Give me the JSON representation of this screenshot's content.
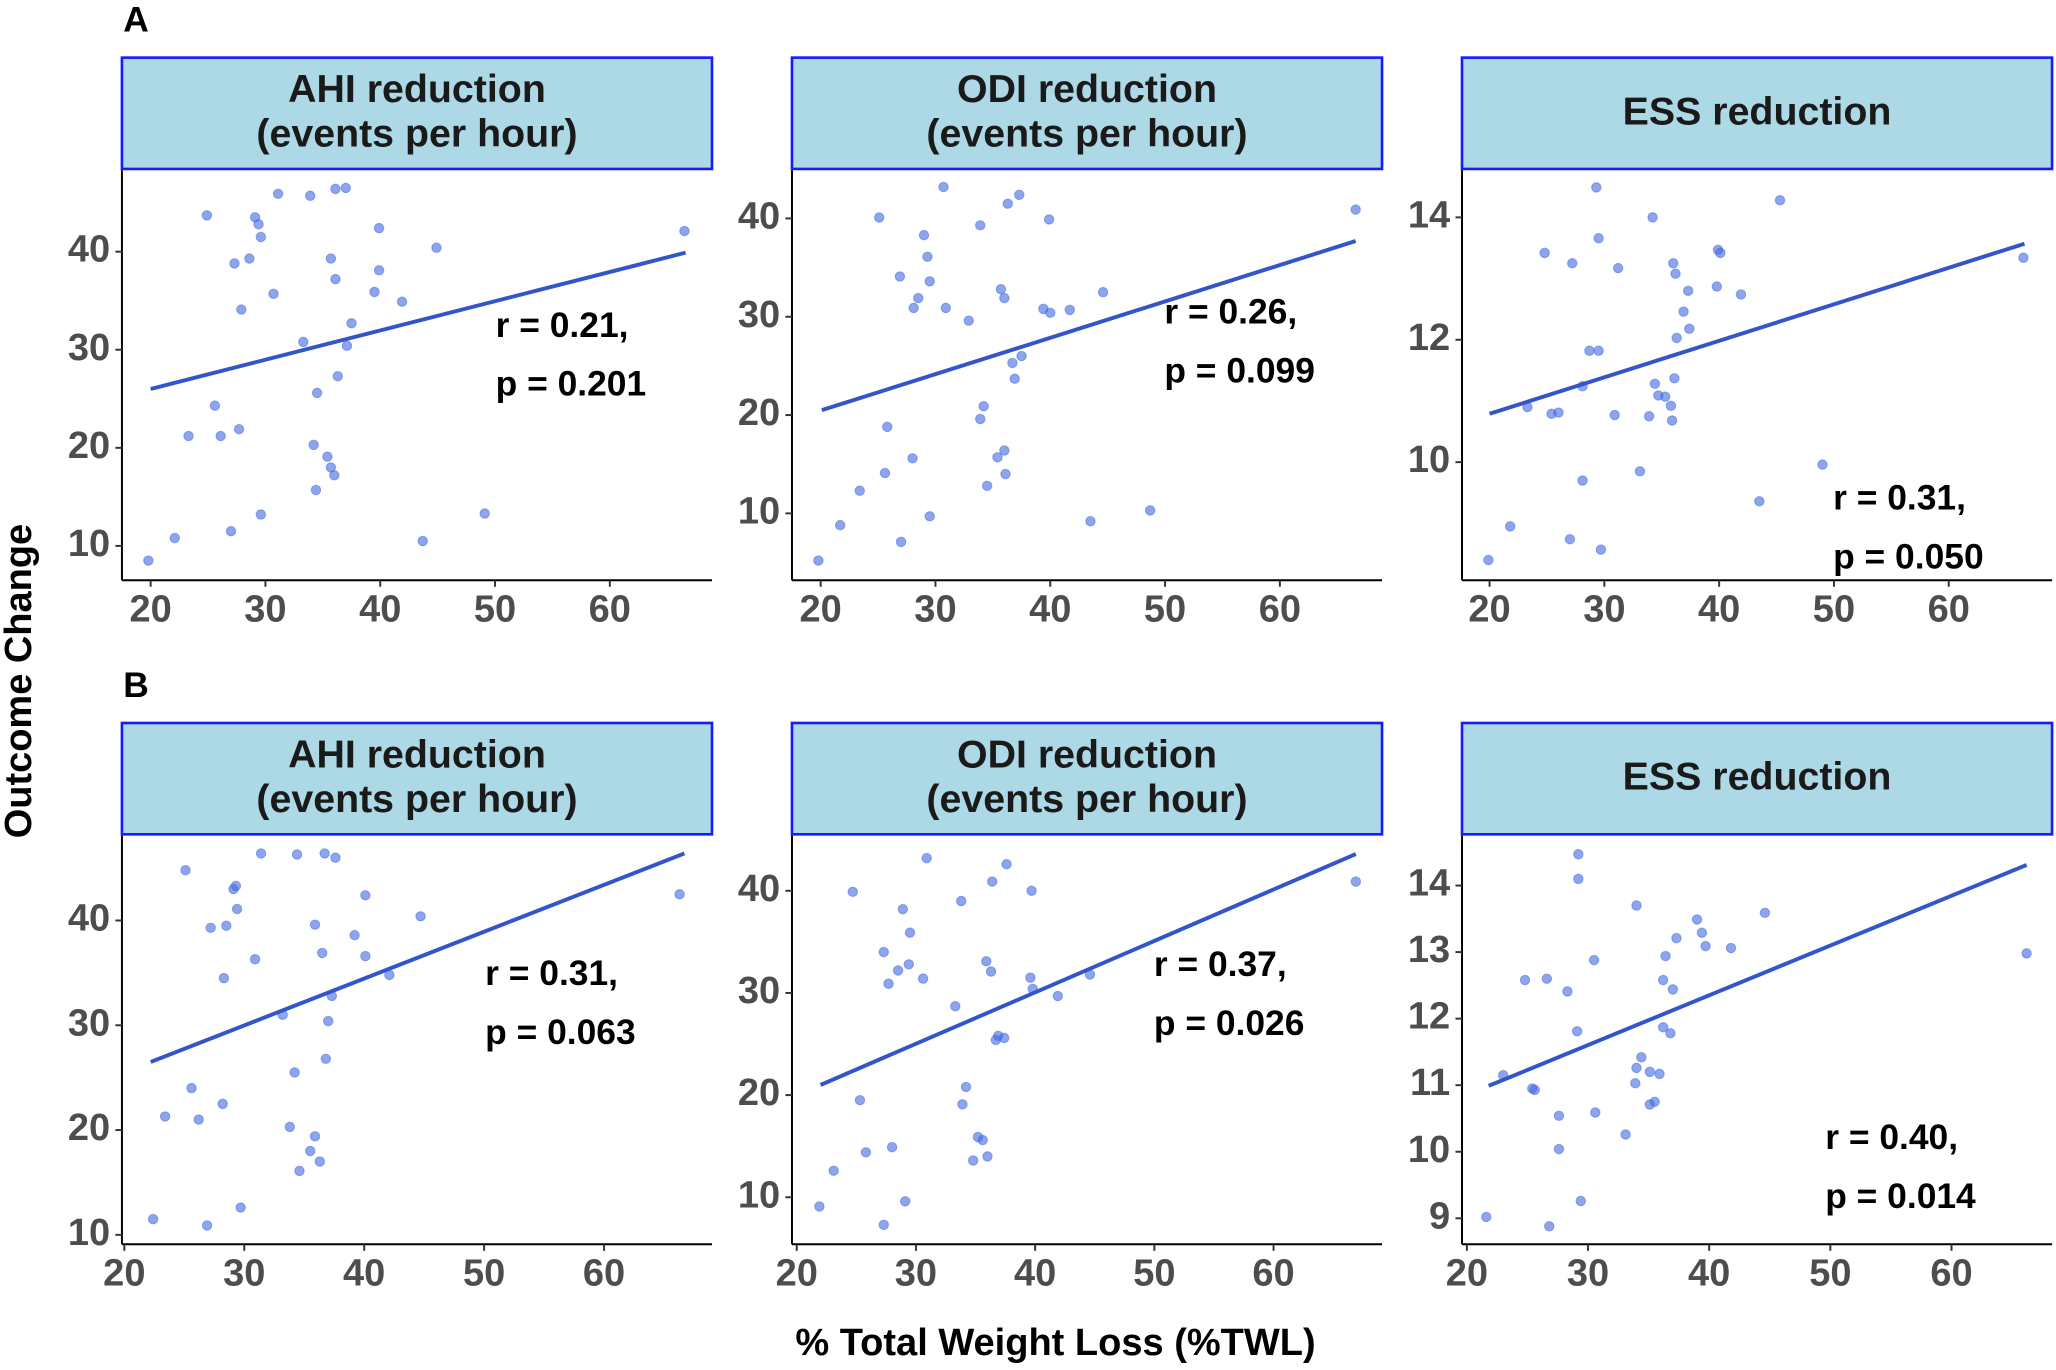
{
  "panel_labels": [
    "A",
    "B"
  ],
  "x_label": "% Total Weight Loss (%TWL)",
  "y_label": "Outcome Change",
  "chart_data": [
    {
      "type": "scatter",
      "title": [
        "AHI reduction",
        "(events per hour)"
      ],
      "color": "#4169e1",
      "line_color": "#3355cc",
      "xlim": [
        17.5,
        68.9
      ],
      "ylim": [
        6.5,
        48.3
      ],
      "xticks": [
        20,
        30,
        40,
        50,
        60
      ],
      "yticks": [
        10,
        20,
        30,
        40
      ],
      "x": [
        19.8,
        22.1,
        23.3,
        24.9,
        25.6,
        26.1,
        27.0,
        27.3,
        27.7,
        27.9,
        28.6,
        29.1,
        29.4,
        29.6,
        29.6,
        30.7,
        31.1,
        33.3,
        33.9,
        34.2,
        34.4,
        34.5,
        35.4,
        35.7,
        35.7,
        36.0,
        36.1,
        36.1,
        36.3,
        37.0,
        37.1,
        37.5,
        39.9,
        39.9,
        39.5,
        41.9,
        43.7,
        44.9,
        49.1,
        66.5
      ],
      "y": [
        8.5,
        10.8,
        21.2,
        43.7,
        24.3,
        21.2,
        11.5,
        38.8,
        21.9,
        34.1,
        39.3,
        43.5,
        42.8,
        41.5,
        13.2,
        35.7,
        45.9,
        30.8,
        45.7,
        20.3,
        15.7,
        25.6,
        19.1,
        39.3,
        18.0,
        17.2,
        46.4,
        37.2,
        27.3,
        46.5,
        30.4,
        32.7,
        42.4,
        38.1,
        35.9,
        34.9,
        10.5,
        40.4,
        13.3,
        42.1
      ],
      "fit": {
        "x": [
          20,
          66.6
        ],
        "y": [
          26.0,
          39.9
        ]
      },
      "annotation": [
        "r = 0.21,",
        "p = 0.201"
      ]
    },
    {
      "type": "scatter",
      "title": [
        "ODI reduction",
        "(events per hour)"
      ],
      "color": "#4169e1",
      "line_color": "#3355cc",
      "xlim": [
        17.5,
        68.9
      ],
      "ylim": [
        3.2,
        44.9
      ],
      "xticks": [
        20,
        30,
        40,
        50,
        60
      ],
      "yticks": [
        10,
        20,
        30,
        40
      ],
      "x": [
        19.8,
        21.7,
        23.4,
        25.1,
        25.6,
        25.8,
        26.9,
        27.0,
        28.0,
        28.1,
        28.5,
        29.0,
        29.3,
        29.5,
        29.5,
        30.7,
        30.9,
        32.9,
        33.9,
        33.9,
        34.2,
        34.5,
        35.4,
        35.7,
        36.0,
        36.0,
        36.1,
        36.3,
        36.7,
        36.9,
        37.3,
        37.5,
        39.4,
        39.9,
        40.0,
        41.7,
        43.5,
        44.6,
        48.7,
        66.6
      ],
      "y": [
        5.2,
        8.8,
        12.3,
        40.1,
        14.1,
        18.8,
        34.1,
        7.1,
        15.6,
        30.9,
        31.9,
        38.3,
        36.1,
        33.6,
        9.7,
        43.2,
        30.9,
        29.6,
        39.3,
        19.6,
        20.9,
        12.8,
        15.7,
        32.8,
        16.4,
        31.9,
        14.0,
        41.5,
        25.3,
        23.7,
        42.4,
        26.0,
        30.8,
        39.9,
        30.4,
        30.7,
        9.2,
        32.5,
        10.3,
        40.9
      ],
      "fit": {
        "x": [
          20.1,
          66.6
        ],
        "y": [
          20.5,
          37.7
        ]
      },
      "annotation": [
        "r = 0.26,",
        "p = 0.099"
      ]
    },
    {
      "type": "scatter",
      "title": [
        "ESS reduction"
      ],
      "color": "#4169e1",
      "line_color": "#3355cc",
      "xlim": [
        17.6,
        69.0
      ],
      "ylim": [
        8.07,
        14.77
      ],
      "xticks": [
        20,
        30,
        40,
        50,
        60
      ],
      "yticks": [
        10,
        12,
        14
      ],
      "x": [
        19.9,
        21.8,
        23.3,
        24.8,
        25.4,
        26.0,
        27.0,
        27.2,
        28.1,
        28.1,
        28.7,
        29.3,
        29.5,
        29.5,
        29.7,
        31.2,
        30.9,
        33.1,
        33.9,
        34.2,
        34.4,
        34.7,
        35.3,
        35.8,
        35.9,
        36.0,
        36.1,
        36.2,
        36.3,
        36.9,
        37.3,
        37.4,
        39.8,
        39.9,
        40.1,
        41.9,
        43.5,
        45.3,
        49.0,
        66.5
      ],
      "y": [
        8.4,
        8.95,
        10.9,
        13.42,
        10.79,
        10.81,
        8.74,
        13.25,
        11.24,
        9.7,
        11.82,
        14.49,
        13.66,
        11.82,
        8.57,
        13.17,
        10.77,
        9.85,
        10.75,
        14.0,
        11.28,
        11.09,
        11.07,
        10.92,
        10.68,
        13.25,
        11.37,
        13.08,
        12.03,
        12.46,
        12.8,
        12.18,
        12.87,
        13.47,
        13.42,
        12.74,
        9.36,
        14.28,
        9.96,
        13.34
      ],
      "fit": {
        "x": [
          20,
          66.6
        ],
        "y": [
          10.79,
          13.57
        ]
      },
      "annotation": [
        "r = 0.31,",
        "p = 0.050"
      ]
    },
    {
      "type": "scatter",
      "title": [
        "AHI reduction",
        "(events per hour)"
      ],
      "color": "#4169e1",
      "line_color": "#3355cc",
      "xlim": [
        19.8,
        69.0
      ],
      "ylim": [
        9.1,
        48.1
      ],
      "xticks": [
        20,
        30,
        40,
        50,
        60
      ],
      "yticks": [
        10,
        20,
        30,
        40
      ],
      "x": [
        22.4,
        23.4,
        25.1,
        25.6,
        26.2,
        26.9,
        27.2,
        28.2,
        28.3,
        28.5,
        29.1,
        29.3,
        29.4,
        29.7,
        30.9,
        31.4,
        33.2,
        33.8,
        34.2,
        34.4,
        34.6,
        35.5,
        35.9,
        35.9,
        36.3,
        36.5,
        36.7,
        36.8,
        37.0,
        37.3,
        37.6,
        39.2,
        40.1,
        40.1,
        42.1,
        44.7,
        66.3
      ],
      "y": [
        11.5,
        21.3,
        44.8,
        24.0,
        21.0,
        10.9,
        39.3,
        22.5,
        34.5,
        39.5,
        43.0,
        43.3,
        41.1,
        12.6,
        36.3,
        46.4,
        31.0,
        20.3,
        25.5,
        46.3,
        16.1,
        18.0,
        39.6,
        19.4,
        17.0,
        36.9,
        46.4,
        26.8,
        30.4,
        32.8,
        46.0,
        38.6,
        42.4,
        36.6,
        34.8,
        40.4,
        42.5
      ],
      "fit": {
        "x": [
          22.2,
          66.7
        ],
        "y": [
          26.5,
          46.4
        ]
      },
      "annotation": [
        "r = 0.31,",
        "p = 0.063"
      ]
    },
    {
      "type": "scatter",
      "title": [
        "ODI reduction",
        "(events per hour)"
      ],
      "color": "#4169e1",
      "line_color": "#3355cc",
      "xlim": [
        19.6,
        69.1
      ],
      "ylim": [
        5.4,
        45.4
      ],
      "xticks": [
        20,
        30,
        40,
        50,
        60
      ],
      "yticks": [
        10,
        20,
        30,
        40
      ],
      "x": [
        21.9,
        23.1,
        24.7,
        25.3,
        25.8,
        27.3,
        27.3,
        27.7,
        28.0,
        28.5,
        28.9,
        29.1,
        29.4,
        29.5,
        30.6,
        30.9,
        33.3,
        33.8,
        33.9,
        34.2,
        34.8,
        35.2,
        35.6,
        35.9,
        36.0,
        36.3,
        36.4,
        36.7,
        36.9,
        37.4,
        37.6,
        39.7,
        39.6,
        39.8,
        41.9,
        44.6,
        66.9
      ],
      "y": [
        9.1,
        12.6,
        39.9,
        19.5,
        14.4,
        34.0,
        7.3,
        30.9,
        14.9,
        32.2,
        38.2,
        9.6,
        32.8,
        35.9,
        31.4,
        43.2,
        28.7,
        39.0,
        19.1,
        20.8,
        13.6,
        15.9,
        15.6,
        33.1,
        14.0,
        32.1,
        40.9,
        25.4,
        25.8,
        25.6,
        42.6,
        40.0,
        31.5,
        30.4,
        29.7,
        31.8,
        40.9
      ],
      "fit": {
        "x": [
          22.0,
          66.9
        ],
        "y": [
          21.0,
          43.6
        ]
      },
      "annotation": [
        "r = 0.37,",
        "p = 0.026"
      ]
    },
    {
      "type": "scatter",
      "title": [
        "ESS reduction"
      ],
      "color": "#4169e1",
      "line_color": "#3355cc",
      "xlim": [
        19.6,
        68.3
      ],
      "ylim": [
        8.61,
        14.75
      ],
      "xticks": [
        20,
        30,
        40,
        50,
        60
      ],
      "yticks": [
        9,
        10,
        11,
        12,
        13,
        14
      ],
      "x": [
        21.6,
        23.0,
        24.8,
        25.4,
        25.6,
        26.6,
        26.8,
        27.6,
        27.6,
        28.3,
        29.1,
        29.2,
        29.2,
        29.4,
        30.5,
        30.6,
        33.1,
        34.0,
        34.0,
        33.9,
        34.4,
        35.1,
        35.5,
        35.1,
        35.9,
        36.2,
        36.2,
        36.4,
        36.8,
        37.0,
        37.3,
        39.0,
        39.4,
        39.7,
        41.8,
        44.6,
        66.2
      ],
      "y": [
        9.02,
        11.15,
        12.58,
        10.95,
        10.93,
        12.6,
        8.88,
        10.54,
        10.04,
        12.41,
        11.81,
        14.47,
        14.1,
        9.26,
        12.88,
        10.59,
        10.26,
        13.7,
        11.26,
        11.03,
        11.42,
        10.71,
        10.75,
        11.2,
        11.17,
        11.87,
        12.58,
        12.94,
        11.78,
        12.44,
        13.21,
        13.49,
        13.29,
        13.09,
        13.06,
        13.59,
        12.98
      ],
      "fit": {
        "x": [
          21.8,
          66.2
        ],
        "y": [
          10.99,
          14.31
        ]
      },
      "annotation": [
        "r = 0.40,",
        "p = 0.014"
      ]
    }
  ]
}
